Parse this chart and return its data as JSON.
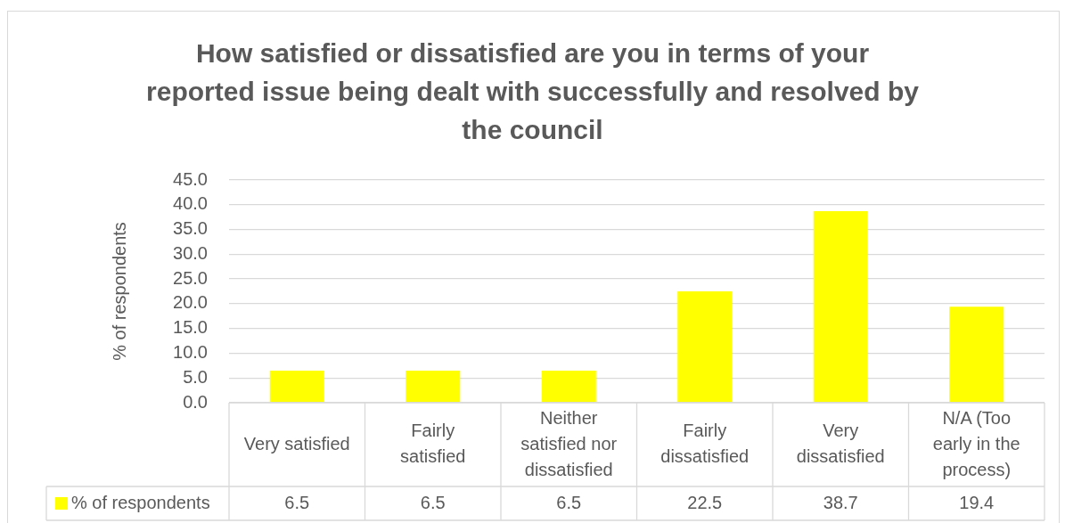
{
  "chart_data": {
    "type": "bar",
    "title": "How satisfied or dissatisfied are you in terms of your reported issue being dealt with successfully and resolved by the council",
    "ylabel": "% of respondents",
    "categories": [
      "Very satisfied",
      "Fairly satisfied",
      "Neither satisfied nor dissatisfied",
      "Fairly dissatisfied",
      "Very dissatisfied",
      "N/A (Too early in the process)"
    ],
    "series": [
      {
        "name": "% of respondents",
        "color": "#ffff00",
        "values": [
          6.5,
          6.5,
          6.5,
          22.5,
          38.7,
          19.4
        ]
      }
    ],
    "ylim": [
      0,
      45
    ],
    "yticks": [
      {
        "value": 0,
        "label": "0.0"
      },
      {
        "value": 5,
        "label": "5.0"
      },
      {
        "value": 10,
        "label": "10.0"
      },
      {
        "value": 15,
        "label": "15.0"
      },
      {
        "value": 20,
        "label": "20.0"
      },
      {
        "value": 25,
        "label": "25.0"
      },
      {
        "value": 30,
        "label": "30.0"
      },
      {
        "value": 35,
        "label": "35.0"
      },
      {
        "value": 40,
        "label": "40.0"
      },
      {
        "value": 45,
        "label": "45.0"
      }
    ],
    "grid": "y",
    "legend": "bottom",
    "data_labels": true
  }
}
